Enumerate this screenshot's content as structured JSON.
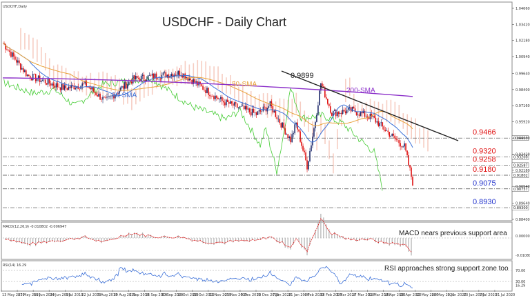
{
  "window": {
    "symbol_label": "USDCHF,Daily"
  },
  "title": "USDCHF - Daily Chart",
  "colors": {
    "bull_candle": "#1f2a6b",
    "bear_candle": "#e01010",
    "sma20": "#3a6fd8",
    "sma50": "#e8a23a",
    "sma200": "#8b2fc9",
    "trendline": "#222222",
    "chikou": "#44cc33",
    "cloud": "#f2b8a8",
    "level_red": "#e01010",
    "level_blue": "#2233cc",
    "macd_signal": "#e01010",
    "macd_hist": "#b0b0b0",
    "rsi": "#3a6fd8"
  },
  "chart_data": {
    "type": "candlestick",
    "price_axis_ticks": [
      "1.04660",
      "1.03420",
      "1.02180",
      "1.00940",
      "0.99640",
      "0.98400",
      "0.97160",
      "0.95920",
      "0.94660",
      "0.93420",
      "0.92180",
      "0.90940",
      "0.89640",
      "0.88400"
    ],
    "date_labels": [
      "13 May 2019",
      "27 May 2019",
      "10 Jun 2019",
      "24 Jun 2019",
      "8 Jul 2019",
      "22 Jul 2019",
      "5 Aug 2019",
      "19 Aug 2019",
      "2 Sep 2019",
      "16 Sep 2019",
      "30 Sep 2019",
      "14 Oct 2019",
      "28 Oct 2019",
      "11 Nov 2019",
      "25 Nov 2019",
      "9 Dec 2019",
      "23 Dec 2019",
      "7 Jan 2020",
      "21 Jan 2020",
      "4 Feb 2020",
      "18 Feb 2020",
      "3 Mar 2020",
      "17 Mar 2020",
      "31 Mar 2020",
      "14 Apr 2020",
      "28 Apr 2020",
      "12 May 2020",
      "26 May 2020",
      "9 Jun 2020",
      "23 Jun 2020",
      "7 Jul 2020",
      "21 Jul 2020"
    ],
    "series": [
      {
        "name": "20-SMA"
      },
      {
        "name": "50-SMA"
      },
      {
        "name": "200-SMA"
      }
    ],
    "annotations": {
      "peak_label": "0.9899",
      "levels": [
        {
          "label": "0.9466",
          "value": 0.9466,
          "color": "red"
        },
        {
          "label": "0.9320",
          "value": 0.932,
          "color": "red"
        },
        {
          "label": "0.9258",
          "value": 0.9258,
          "color": "red"
        },
        {
          "label": "0.9180",
          "value": 0.918,
          "color": "red"
        },
        {
          "label": "0.9075",
          "value": 0.9075,
          "color": "blue"
        },
        {
          "label": "0.8930",
          "value": 0.893,
          "color": "blue"
        }
      ],
      "price_box_labels": [
        "0.94660",
        "0.93200",
        "0.92587",
        "0.91802",
        "0.90757",
        "0.89300"
      ]
    },
    "macd": {
      "label": "MACD(12,26,9) -0.010802 -0.006947",
      "note": "MACD nears previous support area",
      "axis_ticks": [
        "0.00000",
        "-0.010802"
      ]
    },
    "rsi": {
      "label": "RSI(14) 16.29",
      "note": "RSI approaches strong support zone too",
      "axis_ticks": [
        "70.00",
        "30.00",
        "16.29"
      ]
    }
  }
}
